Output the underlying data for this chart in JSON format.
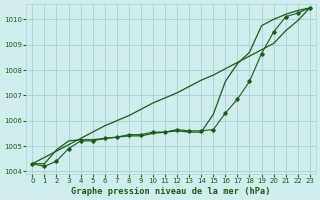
{
  "title": "Graphe pression niveau de la mer (hPa)",
  "bg_color": "#d0ecec",
  "grid_color": "#aad4d4",
  "line_color": "#1a5c1a",
  "hours": [
    0,
    1,
    2,
    3,
    4,
    5,
    6,
    7,
    8,
    9,
    10,
    11,
    12,
    13,
    14,
    15,
    16,
    17,
    18,
    19,
    20,
    21,
    22,
    23
  ],
  "line_straight": [
    1004.3,
    1004.55,
    1004.8,
    1005.05,
    1005.3,
    1005.55,
    1005.8,
    1006.0,
    1006.2,
    1006.45,
    1006.7,
    1006.9,
    1007.1,
    1007.35,
    1007.6,
    1007.8,
    1008.05,
    1008.3,
    1008.55,
    1008.8,
    1009.05,
    1009.55,
    1009.95,
    1010.45
  ],
  "line_zigzag": [
    1004.3,
    1004.2,
    1004.4,
    1004.9,
    1005.2,
    1005.2,
    1005.3,
    1005.35,
    1005.45,
    1005.45,
    1005.55,
    1005.55,
    1005.65,
    1005.6,
    1005.6,
    1005.65,
    1006.3,
    1006.85,
    1007.55,
    1008.65,
    1009.5,
    1010.1,
    1010.25,
    1010.45
  ],
  "line_smooth": [
    1004.3,
    1004.3,
    1004.85,
    1005.2,
    1005.25,
    1005.25,
    1005.3,
    1005.35,
    1005.4,
    1005.4,
    1005.5,
    1005.55,
    1005.6,
    1005.55,
    1005.55,
    1006.25,
    1007.55,
    1008.25,
    1008.7,
    1009.75,
    1010.0,
    1010.2,
    1010.35,
    1010.45
  ],
  "ylim": [
    1003.9,
    1010.6
  ],
  "yticks": [
    1004,
    1005,
    1006,
    1007,
    1008,
    1009,
    1010
  ],
  "xticks": [
    0,
    1,
    2,
    3,
    4,
    5,
    6,
    7,
    8,
    9,
    10,
    11,
    12,
    13,
    14,
    15,
    16,
    17,
    18,
    19,
    20,
    21,
    22,
    23
  ],
  "tick_fontsize": 5.0,
  "label_fontsize": 6.2
}
